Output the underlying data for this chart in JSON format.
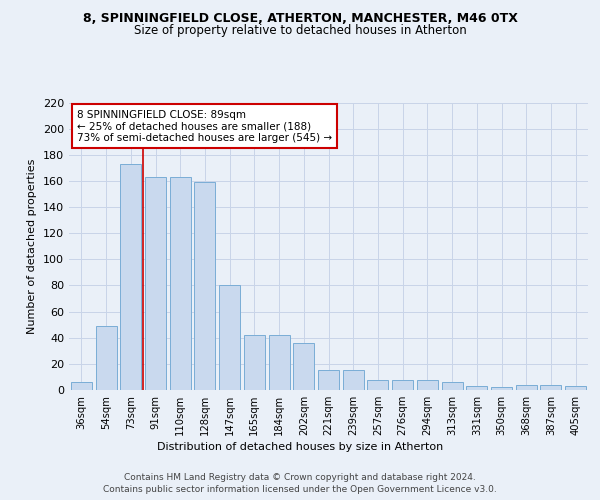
{
  "title1": "8, SPINNINGFIELD CLOSE, ATHERTON, MANCHESTER, M46 0TX",
  "title2": "Size of property relative to detached houses in Atherton",
  "xlabel": "Distribution of detached houses by size in Atherton",
  "ylabel": "Number of detached properties",
  "categories": [
    "36sqm",
    "54sqm",
    "73sqm",
    "91sqm",
    "110sqm",
    "128sqm",
    "147sqm",
    "165sqm",
    "184sqm",
    "202sqm",
    "221sqm",
    "239sqm",
    "257sqm",
    "276sqm",
    "294sqm",
    "313sqm",
    "331sqm",
    "350sqm",
    "368sqm",
    "387sqm",
    "405sqm"
  ],
  "values": [
    6,
    49,
    173,
    163,
    163,
    159,
    80,
    42,
    42,
    36,
    15,
    15,
    8,
    8,
    8,
    6,
    3,
    2,
    4,
    4,
    3
  ],
  "bar_color": "#c9d9ee",
  "bar_edge_color": "#7aadd6",
  "grid_color": "#c8d4e8",
  "background_color": "#eaf0f8",
  "vline_x": 2.5,
  "vline_color": "#cc0000",
  "annotation_text": "8 SPINNINGFIELD CLOSE: 89sqm\n← 25% of detached houses are smaller (188)\n73% of semi-detached houses are larger (545) →",
  "annotation_box_color": "#ffffff",
  "annotation_box_edge": "#cc0000",
  "footer1": "Contains HM Land Registry data © Crown copyright and database right 2024.",
  "footer2": "Contains public sector information licensed under the Open Government Licence v3.0.",
  "ylim": [
    0,
    220
  ],
  "yticks": [
    0,
    20,
    40,
    60,
    80,
    100,
    120,
    140,
    160,
    180,
    200,
    220
  ]
}
